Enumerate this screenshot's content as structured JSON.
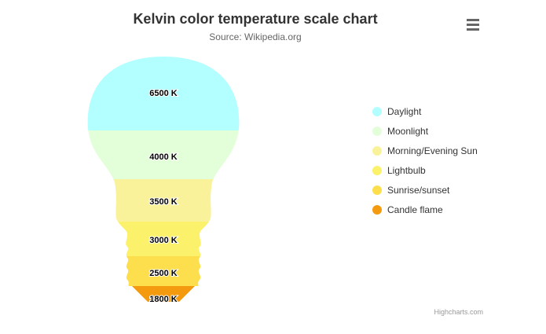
{
  "menu_icon": "hamburger-menu-icon",
  "credits": "Highcharts.com",
  "chart_data": {
    "type": "bulb-area",
    "title": "Kelvin color temperature scale chart",
    "subtitle": "Source: Wikipedia.org",
    "legend_position": "right",
    "categories": [
      {
        "name": "Daylight",
        "label": "6500 K",
        "value": 6500,
        "color": "#b3ffff"
      },
      {
        "name": "Moonlight",
        "label": "4000 K",
        "value": 4000,
        "color": "#e3ffd9"
      },
      {
        "name": "Morning/Evening Sun",
        "label": "3500 K",
        "value": 3500,
        "color": "#f9f29b"
      },
      {
        "name": "Lightbulb",
        "label": "3000 K",
        "value": 3000,
        "color": "#fcf16b"
      },
      {
        "name": "Sunrise/sunset",
        "label": "2500 K",
        "value": 2500,
        "color": "#fddf4d"
      },
      {
        "name": "Candle flame",
        "label": "1800 K",
        "value": 1800,
        "color": "#f49a0f"
      }
    ]
  }
}
